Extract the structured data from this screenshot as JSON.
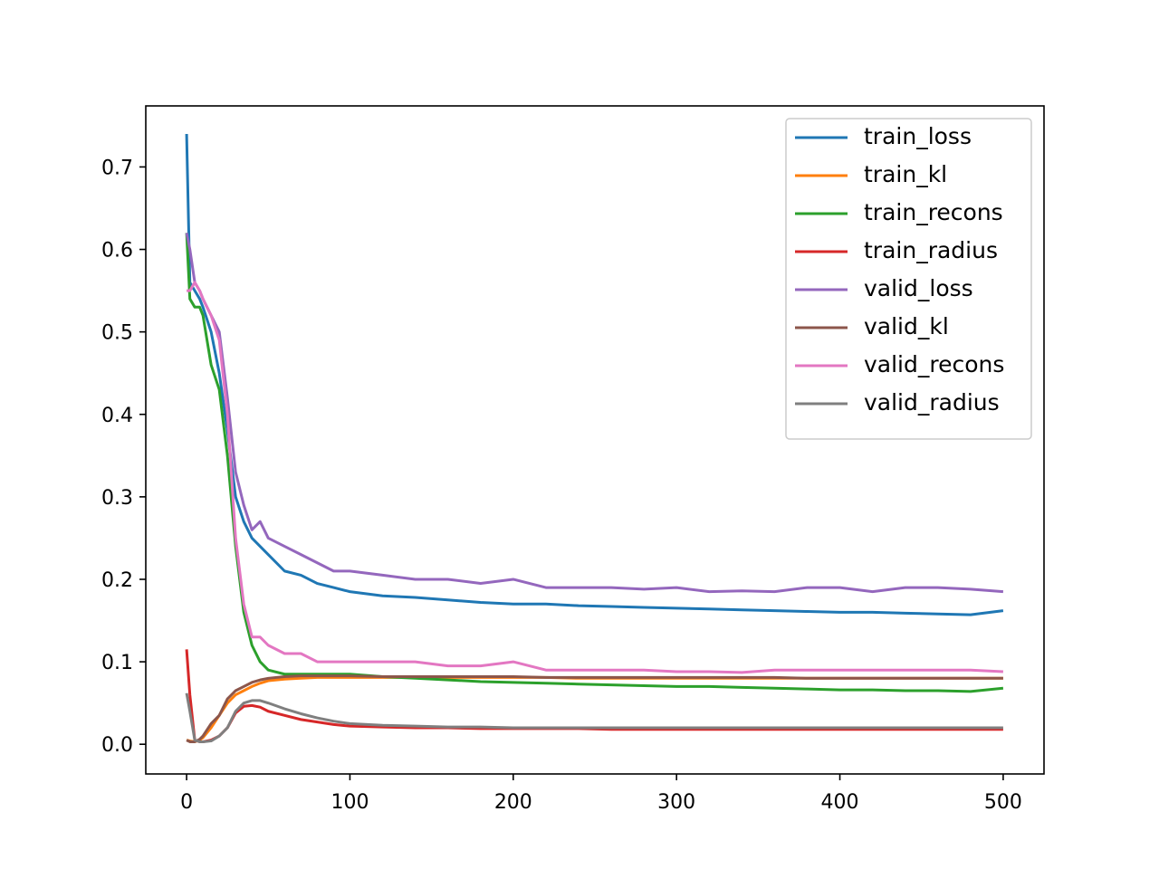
{
  "chart_data": {
    "type": "line",
    "x": [
      0,
      2,
      5,
      8,
      10,
      15,
      20,
      25,
      30,
      35,
      40,
      45,
      50,
      60,
      70,
      80,
      90,
      100,
      120,
      140,
      160,
      180,
      200,
      220,
      240,
      260,
      280,
      300,
      320,
      340,
      360,
      380,
      400,
      420,
      440,
      460,
      480,
      500
    ],
    "series": [
      {
        "name": "train_loss",
        "color": "#1f77b4",
        "values": [
          0.74,
          0.56,
          0.55,
          0.54,
          0.53,
          0.5,
          0.45,
          0.38,
          0.3,
          0.27,
          0.25,
          0.24,
          0.23,
          0.21,
          0.205,
          0.195,
          0.19,
          0.185,
          0.18,
          0.178,
          0.175,
          0.172,
          0.17,
          0.17,
          0.168,
          0.167,
          0.166,
          0.165,
          0.164,
          0.163,
          0.162,
          0.161,
          0.16,
          0.16,
          0.159,
          0.158,
          0.157,
          0.162
        ]
      },
      {
        "name": "train_kl",
        "color": "#ff7f0e",
        "values": [
          0.005,
          0.004,
          0.003,
          0.005,
          0.008,
          0.02,
          0.035,
          0.05,
          0.06,
          0.065,
          0.07,
          0.074,
          0.077,
          0.079,
          0.08,
          0.081,
          0.081,
          0.081,
          0.081,
          0.081,
          0.081,
          0.081,
          0.081,
          0.081,
          0.08,
          0.08,
          0.08,
          0.08,
          0.08,
          0.08,
          0.08,
          0.08,
          0.08,
          0.08,
          0.08,
          0.08,
          0.08,
          0.08
        ]
      },
      {
        "name": "train_recons",
        "color": "#2ca02c",
        "values": [
          0.62,
          0.54,
          0.53,
          0.53,
          0.52,
          0.46,
          0.43,
          0.35,
          0.24,
          0.16,
          0.12,
          0.1,
          0.09,
          0.085,
          0.085,
          0.085,
          0.085,
          0.085,
          0.082,
          0.08,
          0.078,
          0.076,
          0.075,
          0.074,
          0.073,
          0.072,
          0.071,
          0.07,
          0.07,
          0.069,
          0.068,
          0.067,
          0.066,
          0.066,
          0.065,
          0.065,
          0.064,
          0.068
        ]
      },
      {
        "name": "train_radius",
        "color": "#d62728",
        "values": [
          0.115,
          0.06,
          0.005,
          0.003,
          0.003,
          0.005,
          0.01,
          0.02,
          0.038,
          0.046,
          0.047,
          0.045,
          0.04,
          0.035,
          0.03,
          0.027,
          0.024,
          0.022,
          0.021,
          0.02,
          0.02,
          0.019,
          0.019,
          0.019,
          0.019,
          0.018,
          0.018,
          0.018,
          0.018,
          0.018,
          0.018,
          0.018,
          0.018,
          0.018,
          0.018,
          0.018,
          0.018,
          0.018
        ]
      },
      {
        "name": "valid_loss",
        "color": "#9467bd",
        "values": [
          0.62,
          0.6,
          0.56,
          0.55,
          0.54,
          0.52,
          0.5,
          0.42,
          0.33,
          0.29,
          0.26,
          0.27,
          0.25,
          0.24,
          0.23,
          0.22,
          0.21,
          0.21,
          0.205,
          0.2,
          0.2,
          0.195,
          0.2,
          0.19,
          0.19,
          0.19,
          0.188,
          0.19,
          0.185,
          0.186,
          0.185,
          0.19,
          0.19,
          0.185,
          0.19,
          0.19,
          0.188,
          0.185
        ]
      },
      {
        "name": "valid_kl",
        "color": "#8c564b",
        "values": [
          0.005,
          0.003,
          0.003,
          0.006,
          0.01,
          0.025,
          0.035,
          0.055,
          0.065,
          0.07,
          0.075,
          0.078,
          0.08,
          0.082,
          0.083,
          0.083,
          0.083,
          0.083,
          0.082,
          0.082,
          0.082,
          0.082,
          0.082,
          0.081,
          0.081,
          0.081,
          0.081,
          0.081,
          0.081,
          0.081,
          0.081,
          0.08,
          0.08,
          0.08,
          0.08,
          0.08,
          0.08,
          0.08
        ]
      },
      {
        "name": "valid_recons",
        "color": "#e377c2",
        "values": [
          0.55,
          0.55,
          0.56,
          0.55,
          0.54,
          0.52,
          0.49,
          0.4,
          0.25,
          0.17,
          0.13,
          0.13,
          0.12,
          0.11,
          0.11,
          0.1,
          0.1,
          0.1,
          0.1,
          0.1,
          0.095,
          0.095,
          0.1,
          0.09,
          0.09,
          0.09,
          0.09,
          0.088,
          0.088,
          0.087,
          0.09,
          0.09,
          0.09,
          0.09,
          0.09,
          0.09,
          0.09,
          0.088
        ]
      },
      {
        "name": "valid_radius",
        "color": "#7f7f7f",
        "values": [
          0.062,
          0.04,
          0.005,
          0.003,
          0.003,
          0.004,
          0.01,
          0.02,
          0.04,
          0.05,
          0.053,
          0.053,
          0.05,
          0.043,
          0.037,
          0.032,
          0.028,
          0.025,
          0.023,
          0.022,
          0.021,
          0.021,
          0.02,
          0.02,
          0.02,
          0.02,
          0.02,
          0.02,
          0.02,
          0.02,
          0.02,
          0.02,
          0.02,
          0.02,
          0.02,
          0.02,
          0.02,
          0.02
        ]
      }
    ],
    "xlim": [
      -25,
      525
    ],
    "ylim": [
      -0.036,
      0.774
    ],
    "xticks": [
      0,
      100,
      200,
      300,
      400,
      500
    ],
    "yticks": [
      {
        "value": 0,
        "label": "0.0"
      },
      0.1,
      0.2,
      0.3,
      0.4,
      0.5,
      0.6,
      0.7
    ],
    "legend": "upper right",
    "grid": false
  }
}
